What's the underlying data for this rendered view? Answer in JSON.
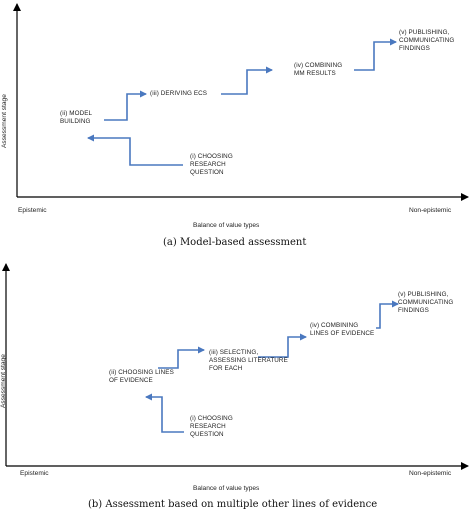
{
  "figures": [
    {
      "caption": "(a)  Model-based assessment",
      "ylabel": "Assessment stage",
      "xlabel": "Balance of value types",
      "x_left": "Epistemic",
      "x_right": "Non-epistemic",
      "stages": [
        {
          "text": "(i) CHOOSING\nRESEARCH\nQUESTION"
        },
        {
          "text": "(ii) MODEL\nBUILDING"
        },
        {
          "text": "(iii) DERIVING ECS"
        },
        {
          "text": "(iv) COMBINING\nMM RESULTS"
        },
        {
          "text": "(v) PUBLISHING,\nCOMMUNICATING\nFINDINGS"
        }
      ]
    },
    {
      "caption": "(b)  Assessment based on multiple other lines of evidence",
      "ylabel": "Assessment stage",
      "xlabel": "Balance of value types",
      "x_left": "Epistemic",
      "x_right": "Non-epistemic",
      "stages": [
        {
          "text": "(i) CHOOSING\nRESEARCH\nQUESTION"
        },
        {
          "text": "(ii) CHOOSING LINES\nOF EVIDENCE"
        },
        {
          "text": "(iii) SELECTING,\nASSESSING LITERATURE\nFOR EACH"
        },
        {
          "text": "(iv) COMBINING\nLINES OF EVIDENCE"
        },
        {
          "text": "(v) PUBLISHING,\nCOMMUNICATING\nFINDINGS"
        }
      ]
    }
  ],
  "colors": {
    "arrow": "#4a78bf",
    "axis": "#000000"
  }
}
